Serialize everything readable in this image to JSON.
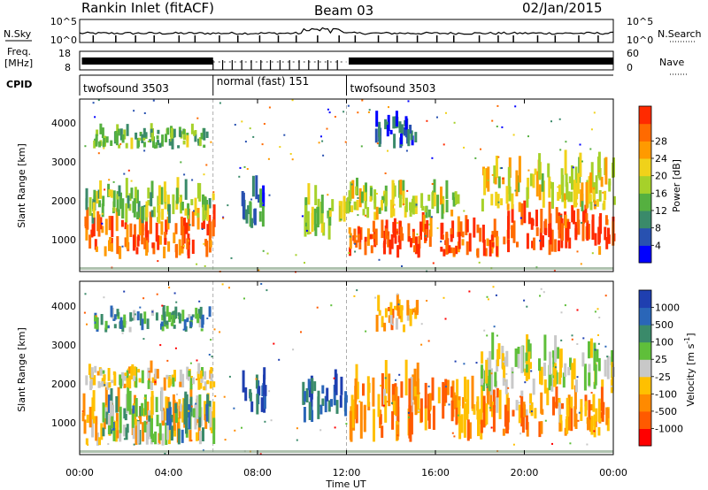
{
  "header": {
    "title": "Rankin Inlet (fitACF)",
    "beam": "Beam 03",
    "date": "02/Jan/2015"
  },
  "top_strips": {
    "nsky_label": "N.Sky",
    "nsky_ticks": [
      "10^5",
      "10^0"
    ],
    "nsearch_label": "N.Search",
    "nsearch_ticks": [
      "10^5",
      "10^0"
    ],
    "freq_label_line1": "Freq.",
    "freq_label_line2": "[MHz]",
    "freq_ticks": [
      "18",
      "8"
    ],
    "nave_label": "Nave",
    "nave_ticks": [
      "60",
      "0"
    ],
    "cpid_label": "CPID",
    "cpid_segments": [
      {
        "label": "twofsound 3503",
        "start_hour": 0,
        "end_hour": 6
      },
      {
        "label": "normal (fast) 151",
        "start_hour": 6,
        "end_hour": 12
      },
      {
        "label": "twofsound 3503",
        "start_hour": 12,
        "end_hour": 24
      }
    ]
  },
  "x_axis": {
    "label": "Time UT",
    "ticks": [
      "00:00",
      "04:00",
      "08:00",
      "12:00",
      "16:00",
      "20:00",
      "00:00"
    ],
    "range_hours": [
      0,
      24
    ]
  },
  "chart_data": [
    {
      "type": "heatmap",
      "name": "power",
      "xlabel": "Time UT",
      "ylabel": "Slant Range [km]",
      "x_range_hours": [
        0,
        24
      ],
      "y_range_km": [
        180,
        4600
      ],
      "y_ticks": [
        "1000",
        "2000",
        "3000",
        "4000"
      ],
      "colorbar_label": "Power [dB]",
      "colorbar_ticks": [
        "4",
        "8",
        "12",
        "16",
        "20",
        "24",
        "28"
      ],
      "colorbar_colors": [
        "#0000ff",
        "#2851b0",
        "#3a8a6a",
        "#55b040",
        "#a6d12a",
        "#f0d21a",
        "#ff9a00",
        "#ff6a00",
        "#ff2a00"
      ],
      "regions": [
        {
          "t0": 0.1,
          "t1": 6.0,
          "r0": 500,
          "r1": 1900,
          "level": 0.9
        },
        {
          "t0": 0.1,
          "t1": 6.0,
          "r0": 1400,
          "r1": 2600,
          "level": 0.45
        },
        {
          "t0": 0.6,
          "t1": 5.8,
          "r0": 3300,
          "r1": 4000,
          "level": 0.4
        },
        {
          "t0": 7.2,
          "t1": 8.3,
          "r0": 1200,
          "r1": 2700,
          "level": 0.2
        },
        {
          "t0": 10.0,
          "t1": 12.0,
          "r0": 1000,
          "r1": 2500,
          "level": 0.5
        },
        {
          "t0": 12.0,
          "t1": 19.0,
          "r0": 500,
          "r1": 1700,
          "level": 0.95
        },
        {
          "t0": 12.0,
          "t1": 17.0,
          "r0": 1500,
          "r1": 2600,
          "level": 0.55
        },
        {
          "t0": 13.2,
          "t1": 15.2,
          "r0": 3300,
          "r1": 4300,
          "level": 0.15
        },
        {
          "t0": 19.0,
          "t1": 24.0,
          "r0": 600,
          "r1": 2000,
          "level": 0.95
        },
        {
          "t0": 18.0,
          "t1": 24.0,
          "r0": 1700,
          "r1": 3300,
          "level": 0.6
        }
      ]
    },
    {
      "type": "heatmap",
      "name": "velocity",
      "xlabel": "Time UT",
      "ylabel": "Slant Range [km]",
      "x_range_hours": [
        0,
        24
      ],
      "y_range_km": [
        180,
        4600
      ],
      "y_ticks": [
        "1000",
        "2000",
        "3000",
        "4000"
      ],
      "colorbar_label": "Velocity [m s^-1]",
      "colorbar_ticks": [
        "1000",
        "500",
        "100",
        "25",
        "-25",
        "-100",
        "-500",
        "-1000"
      ],
      "colorbar_colors": [
        "#1f3fb0",
        "#2a66b8",
        "#3a8a6a",
        "#5fbf3a",
        "#c8c8c8",
        "#ffc000",
        "#ff8a00",
        "#ff5a00",
        "#ff0000"
      ],
      "regions": [
        {
          "t0": 0.1,
          "t1": 6.0,
          "r0": 400,
          "r1": 1900,
          "level": 0.65
        },
        {
          "t0": 1.0,
          "t1": 6.0,
          "r0": 400,
          "r1": 1900,
          "level": 0.3
        },
        {
          "t0": 0.1,
          "t1": 6.0,
          "r0": 1800,
          "r1": 2600,
          "level": 0.55
        },
        {
          "t0": 0.6,
          "t1": 5.8,
          "r0": 3300,
          "r1": 4000,
          "level": 0.3
        },
        {
          "t0": 7.2,
          "t1": 8.3,
          "r0": 1200,
          "r1": 2700,
          "level": 0.08
        },
        {
          "t0": 10.0,
          "t1": 12.0,
          "r0": 1000,
          "r1": 2500,
          "level": 0.15
        },
        {
          "t0": 12.0,
          "t1": 19.0,
          "r0": 500,
          "r1": 2600,
          "level": 0.72
        },
        {
          "t0": 13.2,
          "t1": 15.2,
          "r0": 3300,
          "r1": 4300,
          "level": 0.7
        },
        {
          "t0": 19.0,
          "t1": 24.0,
          "r0": 600,
          "r1": 2000,
          "level": 0.72
        },
        {
          "t0": 18.0,
          "t1": 24.0,
          "r0": 1700,
          "r1": 3300,
          "level": 0.5
        }
      ]
    }
  ]
}
